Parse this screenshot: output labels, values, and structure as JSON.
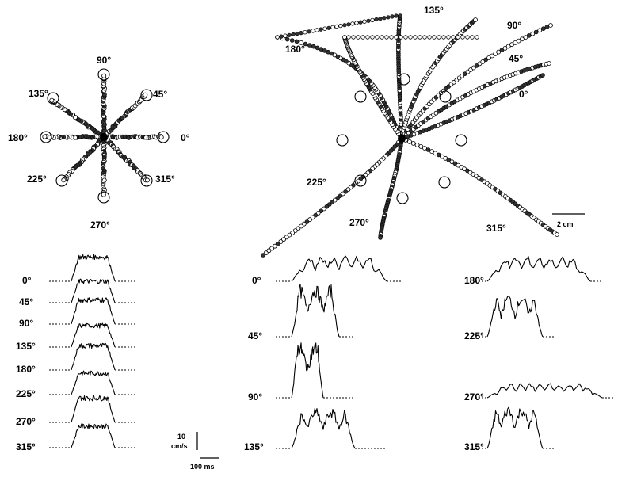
{
  "figure": {
    "panel_a": {
      "directions": [
        "0°",
        "45°",
        "90°",
        "135°",
        "180°",
        "225°",
        "270°",
        "315°"
      ]
    },
    "panel_b": {
      "directions": [
        "0°",
        "45°",
        "90°",
        "135°",
        "180°",
        "225°",
        "270°",
        "315°"
      ],
      "scale_bar": "2 cm"
    },
    "velocity_left": {
      "rows": [
        "0°",
        "45°",
        "90°",
        "135°",
        "180°",
        "225°",
        "270°",
        "315°"
      ]
    },
    "velocity_mid": {
      "rows": [
        "0°",
        "45°",
        "90°",
        "135°"
      ]
    },
    "velocity_right": {
      "rows": [
        "180°",
        "225°",
        "270°",
        "315°"
      ]
    },
    "scale": {
      "velocity_value": "10",
      "velocity_unit": "cm/s",
      "time": "100 ms"
    }
  }
}
